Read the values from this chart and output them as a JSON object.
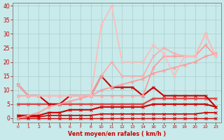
{
  "bg_color": "#c8eaea",
  "grid_color": "#aacccc",
  "x_labels": [
    "0",
    "1",
    "2",
    "4",
    "5",
    "6",
    "7",
    "8",
    "10",
    "11",
    "12",
    "13",
    "14",
    "16",
    "17",
    "18",
    "19",
    "20",
    "22",
    "23"
  ],
  "y_ticks": [
    0,
    5,
    10,
    15,
    20,
    25,
    30,
    35,
    40
  ],
  "xlabel": "Vent moyen/en rafales ( km/h )",
  "xlabel_color": "#cc0000",
  "tick_color": "#cc0000",
  "ylim": [
    -1.5,
    41
  ],
  "series": [
    {
      "y": [
        0,
        0,
        0,
        0,
        0,
        0,
        0,
        0,
        0,
        0,
        0,
        0,
        0,
        0,
        0,
        0,
        0,
        0,
        0,
        0
      ],
      "color": "#cc0000",
      "lw": 1.0
    },
    {
      "y": [
        0.5,
        0.5,
        0.5,
        1,
        1,
        1,
        1,
        1,
        1.5,
        1.5,
        1.5,
        1.5,
        1.5,
        1.5,
        1.5,
        1.5,
        1.5,
        1.5,
        2,
        2
      ],
      "color": "#cc0000",
      "lw": 1.2
    },
    {
      "y": [
        1,
        1,
        1,
        2,
        2,
        3,
        3,
        3,
        4,
        4,
        4,
        4,
        4,
        5,
        5,
        5,
        5,
        5,
        5,
        4
      ],
      "color": "#cc0000",
      "lw": 1.5
    },
    {
      "y": [
        5,
        5,
        5,
        5,
        5,
        5,
        5,
        5,
        5,
        5,
        5,
        5,
        5,
        7,
        7,
        7,
        7,
        7,
        7,
        7
      ],
      "color": "#dd4444",
      "lw": 1.6
    },
    {
      "y": [
        12,
        8,
        8,
        5,
        5,
        8,
        8,
        8,
        15,
        11,
        11,
        11,
        8,
        11,
        8,
        8,
        8,
        8,
        8,
        4
      ],
      "color": "#cc0000",
      "lw": 1.5
    },
    {
      "y": [
        0,
        1,
        2,
        4,
        5,
        6,
        7,
        8,
        10,
        11,
        12,
        13,
        14,
        16,
        17,
        18,
        19,
        20,
        22,
        23
      ],
      "color": "#ff9999",
      "lw": 1.2
    },
    {
      "y": [
        8,
        8,
        8,
        8,
        8,
        8,
        8,
        8,
        8,
        8,
        8,
        8,
        8,
        18,
        22,
        22,
        22,
        22,
        26,
        22
      ],
      "color": "#ff9999",
      "lw": 1.2
    },
    {
      "y": [
        8,
        8,
        8,
        8,
        8,
        8,
        8,
        8,
        15,
        20,
        15,
        15,
        15,
        22,
        25,
        23,
        22,
        22,
        30,
        22
      ],
      "color": "#ffaaaa",
      "lw": 1.2
    },
    {
      "y": [
        12,
        8,
        8,
        8,
        8,
        8,
        8,
        8,
        33,
        40,
        20,
        20,
        20,
        26,
        23,
        15,
        22,
        22,
        30,
        22
      ],
      "color": "#ffbbbb",
      "lw": 1.2
    }
  ]
}
